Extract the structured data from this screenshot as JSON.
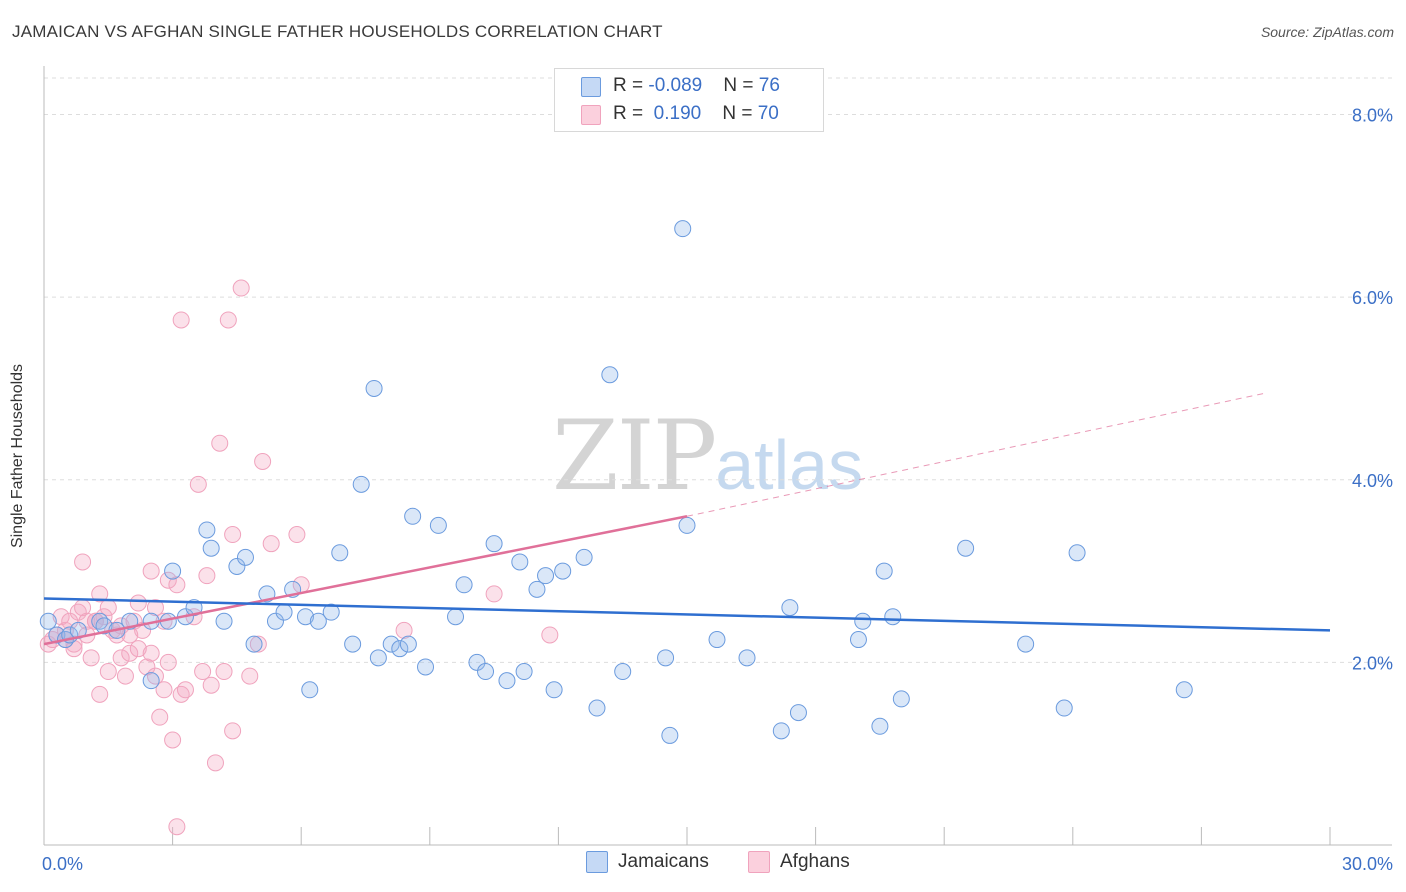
{
  "title": "JAMAICAN VS AFGHAN SINGLE FATHER HOUSEHOLDS CORRELATION CHART",
  "source": "Source: ZipAtlas.com",
  "watermark": {
    "zip": "ZIP",
    "atlas": "atlas"
  },
  "legend_top": {
    "jamaicans": {
      "r_label": "R = ",
      "r_value": "-0.089",
      "n_label": "N = ",
      "n_value": "76"
    },
    "afghans": {
      "r_label": "R = ",
      "r_value": " 0.190",
      "n_label": "N = ",
      "n_value": "70"
    }
  },
  "legend_bottom": {
    "jamaicans": "Jamaicans",
    "afghans": "Afghans"
  },
  "chart_data": {
    "type": "scatter",
    "title": "JAMAICAN VS AFGHAN SINGLE FATHER HOUSEHOLDS CORRELATION CHART",
    "xlabel": "",
    "ylabel": "Single Father Households",
    "xlim": [
      0,
      30
    ],
    "ylim": [
      0,
      8.4
    ],
    "x_tick_labels": [
      "0.0%",
      "30.0%"
    ],
    "y_ticks": [
      2,
      4,
      6,
      8
    ],
    "y_tick_labels": [
      "2.0%",
      "4.0%",
      "6.0%",
      "8.0%"
    ],
    "colors": {
      "jamaicans": "#6b9bde",
      "afghans": "#f0a3bd",
      "jam_line": "#2f6fd0",
      "afg_line": "#e07099",
      "tick_text": "#3b6fc6"
    },
    "series": [
      {
        "name": "Jamaicans",
        "trend": {
          "x": [
            0,
            30
          ],
          "y": [
            2.7,
            2.35
          ]
        },
        "points": [
          [
            0.1,
            2.45
          ],
          [
            0.3,
            2.3
          ],
          [
            0.5,
            2.25
          ],
          [
            0.6,
            2.3
          ],
          [
            0.8,
            2.35
          ],
          [
            1.3,
            2.45
          ],
          [
            1.4,
            2.4
          ],
          [
            1.7,
            2.35
          ],
          [
            2.0,
            2.45
          ],
          [
            2.5,
            2.45
          ],
          [
            2.5,
            1.8
          ],
          [
            2.9,
            2.45
          ],
          [
            3.0,
            3.0
          ],
          [
            3.3,
            2.5
          ],
          [
            3.5,
            2.6
          ],
          [
            3.8,
            3.45
          ],
          [
            3.9,
            3.25
          ],
          [
            4.2,
            2.45
          ],
          [
            4.5,
            3.05
          ],
          [
            4.7,
            3.15
          ],
          [
            4.9,
            2.2
          ],
          [
            5.2,
            2.75
          ],
          [
            5.4,
            2.45
          ],
          [
            5.6,
            2.55
          ],
          [
            5.8,
            2.8
          ],
          [
            6.1,
            2.5
          ],
          [
            6.2,
            1.7
          ],
          [
            6.4,
            2.45
          ],
          [
            6.7,
            2.55
          ],
          [
            6.9,
            3.2
          ],
          [
            7.2,
            2.2
          ],
          [
            7.4,
            3.95
          ],
          [
            7.7,
            5.0
          ],
          [
            7.8,
            2.05
          ],
          [
            8.1,
            2.2
          ],
          [
            8.3,
            2.15
          ],
          [
            8.5,
            2.2
          ],
          [
            8.6,
            3.6
          ],
          [
            8.9,
            1.95
          ],
          [
            9.2,
            3.5
          ],
          [
            9.6,
            2.5
          ],
          [
            9.8,
            2.85
          ],
          [
            10.1,
            2.0
          ],
          [
            10.3,
            1.9
          ],
          [
            10.5,
            3.3
          ],
          [
            10.8,
            1.8
          ],
          [
            11.1,
            3.1
          ],
          [
            11.2,
            1.9
          ],
          [
            11.5,
            2.8
          ],
          [
            11.7,
            2.95
          ],
          [
            11.9,
            1.7
          ],
          [
            12.1,
            3.0
          ],
          [
            12.6,
            3.15
          ],
          [
            12.9,
            1.5
          ],
          [
            13.2,
            5.15
          ],
          [
            13.5,
            1.9
          ],
          [
            14.5,
            2.05
          ],
          [
            14.6,
            1.2
          ],
          [
            14.9,
            6.75
          ],
          [
            15.0,
            3.5
          ],
          [
            15.7,
            2.25
          ],
          [
            16.4,
            2.05
          ],
          [
            17.2,
            1.25
          ],
          [
            17.4,
            2.6
          ],
          [
            17.6,
            1.45
          ],
          [
            19.0,
            2.25
          ],
          [
            19.1,
            2.45
          ],
          [
            19.5,
            1.3
          ],
          [
            19.6,
            3.0
          ],
          [
            19.8,
            2.5
          ],
          [
            20.0,
            1.6
          ],
          [
            21.5,
            3.25
          ],
          [
            22.9,
            2.2
          ],
          [
            23.8,
            1.5
          ],
          [
            24.1,
            3.2
          ],
          [
            26.6,
            1.7
          ]
        ]
      },
      {
        "name": "Afghans",
        "trend": {
          "x": [
            0,
            15
          ],
          "y": [
            2.2,
            3.6
          ]
        },
        "trend_extension": {
          "x": [
            15,
            28.5
          ],
          "y": [
            3.6,
            4.95
          ]
        },
        "points": [
          [
            0.1,
            2.2
          ],
          [
            0.2,
            2.25
          ],
          [
            0.3,
            2.3
          ],
          [
            0.4,
            2.5
          ],
          [
            0.5,
            2.35
          ],
          [
            0.6,
            2.45
          ],
          [
            0.7,
            2.2
          ],
          [
            0.8,
            2.55
          ],
          [
            0.9,
            2.6
          ],
          [
            0.9,
            3.1
          ],
          [
            1.0,
            2.3
          ],
          [
            1.1,
            2.05
          ],
          [
            1.2,
            2.45
          ],
          [
            1.3,
            1.65
          ],
          [
            1.3,
            2.75
          ],
          [
            1.4,
            2.5
          ],
          [
            1.5,
            1.9
          ],
          [
            1.6,
            2.35
          ],
          [
            1.7,
            2.3
          ],
          [
            1.8,
            2.05
          ],
          [
            1.8,
            2.4
          ],
          [
            1.9,
            1.85
          ],
          [
            2.0,
            2.1
          ],
          [
            2.1,
            2.45
          ],
          [
            2.2,
            2.65
          ],
          [
            2.2,
            2.15
          ],
          [
            2.3,
            2.35
          ],
          [
            2.4,
            1.95
          ],
          [
            2.5,
            3.0
          ],
          [
            2.5,
            2.1
          ],
          [
            2.6,
            1.85
          ],
          [
            2.7,
            1.4
          ],
          [
            2.8,
            2.45
          ],
          [
            2.8,
            1.7
          ],
          [
            2.9,
            2.9
          ],
          [
            2.9,
            2.0
          ],
          [
            3.0,
            1.15
          ],
          [
            3.1,
            2.85
          ],
          [
            3.1,
            0.2
          ],
          [
            3.2,
            5.75
          ],
          [
            3.2,
            1.65
          ],
          [
            3.3,
            1.7
          ],
          [
            3.5,
            2.5
          ],
          [
            3.6,
            3.95
          ],
          [
            3.7,
            1.9
          ],
          [
            3.8,
            2.95
          ],
          [
            3.9,
            1.75
          ],
          [
            4.0,
            0.9
          ],
          [
            4.1,
            4.4
          ],
          [
            4.2,
            1.9
          ],
          [
            4.3,
            5.75
          ],
          [
            4.4,
            1.25
          ],
          [
            4.4,
            3.4
          ],
          [
            4.6,
            6.1
          ],
          [
            4.8,
            1.85
          ],
          [
            5.0,
            2.2
          ],
          [
            5.1,
            4.2
          ],
          [
            5.3,
            3.3
          ],
          [
            5.9,
            3.4
          ],
          [
            6.0,
            2.85
          ],
          [
            10.5,
            2.75
          ],
          [
            11.8,
            2.3
          ],
          [
            8.4,
            2.35
          ],
          [
            1.0,
            2.45
          ],
          [
            0.7,
            2.15
          ],
          [
            1.5,
            2.6
          ],
          [
            2.0,
            2.3
          ],
          [
            0.5,
            2.25
          ],
          [
            1.2,
            2.45
          ],
          [
            2.6,
            2.6
          ]
        ]
      }
    ]
  }
}
